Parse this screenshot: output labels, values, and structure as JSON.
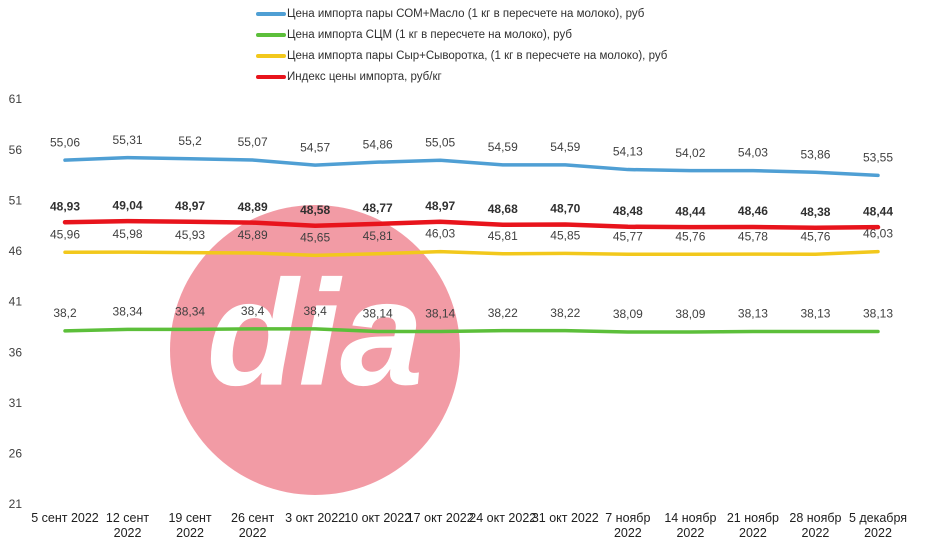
{
  "chart_data": {
    "type": "line",
    "watermark": "dia",
    "categories": [
      "5 сент 2022",
      "12 сент 2022",
      "19 сент 2022",
      "26 сент 2022",
      "3 окт 2022",
      "10 окт 2022",
      "17 окт 2022",
      "24 окт 2022",
      "31 окт 2022",
      "7 ноябр 2022",
      "14 ноябр 2022",
      "21 ноябр 2022",
      "28 ноябр 2022",
      "5 декабря 2022"
    ],
    "series": [
      {
        "name": "Цена импорта пары СОМ+Масло  (1 кг в пересчете на молоко), руб",
        "color": "#4f9fd4",
        "values": [
          55.06,
          55.31,
          55.2,
          55.07,
          54.57,
          54.86,
          55.05,
          54.59,
          54.59,
          54.13,
          54.02,
          54.03,
          53.86,
          53.55
        ],
        "value_labels": [
          "55,06",
          "55,31",
          "55,2",
          "55,07",
          "54,57",
          "54,86",
          "55,05",
          "54,59",
          "54,59",
          "54,13",
          "54,02",
          "54,03",
          "53,86",
          "53,55"
        ]
      },
      {
        "name": "Цена импорта СЦМ (1 кг в пересчете на молоко), руб",
        "color": "#5cbf3a",
        "values": [
          38.2,
          38.34,
          38.34,
          38.4,
          38.4,
          38.14,
          38.14,
          38.22,
          38.22,
          38.09,
          38.09,
          38.13,
          38.13,
          38.13
        ],
        "value_labels": [
          "38,2",
          "38,34",
          "38,34",
          "38,4",
          "38,4",
          "38,14",
          "38,14",
          "38,22",
          "38,22",
          "38,09",
          "38,09",
          "38,13",
          "38,13",
          "38,13"
        ]
      },
      {
        "name": "Цена импорта пары Сыр+Сыворотка, (1 кг в пересчете на молоко), руб",
        "color": "#f2c81c",
        "values": [
          45.96,
          45.98,
          45.93,
          45.89,
          45.65,
          45.81,
          46.03,
          45.81,
          45.85,
          45.77,
          45.76,
          45.78,
          45.76,
          46.03
        ],
        "value_labels": [
          "45,96",
          "45,98",
          "45,93",
          "45,89",
          "45,65",
          "45,81",
          "46,03",
          "45,81",
          "45,85",
          "45,77",
          "45,76",
          "45,78",
          "45,76",
          "46,03"
        ]
      },
      {
        "name": "Индекс цены импорта, руб/кг",
        "color": "#e8141c",
        "values": [
          48.93,
          49.04,
          48.97,
          48.89,
          48.58,
          48.77,
          48.97,
          48.68,
          48.7,
          48.48,
          48.44,
          48.46,
          48.38,
          48.44
        ],
        "value_labels": [
          "48,93",
          "49,04",
          "48,97",
          "48,89",
          "48,58",
          "48,77",
          "48,97",
          "48,68",
          "48,70",
          "48,48",
          "48,44",
          "48,46",
          "48,38",
          "48,44"
        ]
      }
    ],
    "ylim": [
      21,
      61
    ],
    "yticks": [
      21,
      26,
      31,
      36,
      41,
      46,
      51,
      56,
      61
    ],
    "grid": false
  }
}
